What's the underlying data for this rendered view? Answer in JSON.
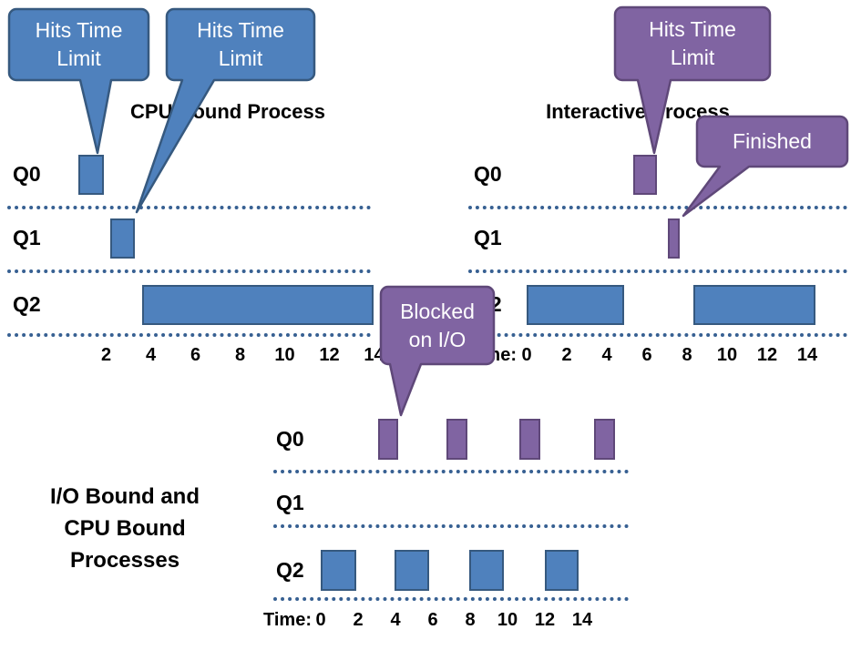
{
  "colors": {
    "blue_fill": "#4f81bd",
    "blue_border": "#36597f",
    "purple_fill": "#8064a2",
    "purple_border": "#5f4879",
    "dotted_line": "#376092",
    "text": "#000000",
    "callout_text": "#ffffff"
  },
  "charts": [
    {
      "id": "cpu_bound",
      "title": "CPU Bound Process",
      "queues": [
        "Q0",
        "Q1",
        "Q2"
      ],
      "axis": {
        "prefix": "",
        "ticks": [
          2,
          4,
          6,
          8,
          10,
          12,
          14
        ]
      },
      "bars": [
        {
          "queue": 0,
          "start": 0.75,
          "end": 1.9,
          "color": "blue"
        },
        {
          "queue": 1,
          "start": 2.2,
          "end": 3.3,
          "color": "blue"
        },
        {
          "queue": 2,
          "start": 3.6,
          "end": 14.0,
          "color": "blue"
        }
      ]
    },
    {
      "id": "interactive",
      "title": "Interactive Process",
      "queues": [
        "Q0",
        "Q1",
        "Q2"
      ],
      "axis": {
        "prefix": "Time:",
        "ticks": [
          0,
          2,
          4,
          6,
          8,
          10,
          12,
          14
        ]
      },
      "bars": [
        {
          "queue": 2,
          "start": 0,
          "end": 4.85,
          "color": "blue"
        },
        {
          "queue": 0,
          "start": 5.3,
          "end": 6.5,
          "color": "purple"
        },
        {
          "queue": 1,
          "start": 7.05,
          "end": 7.62,
          "color": "purple"
        },
        {
          "queue": 2,
          "start": 8.3,
          "end": 14.4,
          "color": "blue"
        }
      ]
    },
    {
      "id": "io_bound",
      "title": "",
      "queues": [
        "Q0",
        "Q1",
        "Q2"
      ],
      "axis": {
        "prefix": "Time:",
        "ticks": [
          0,
          2,
          4,
          6,
          8,
          10,
          12,
          14
        ]
      },
      "bars": [
        {
          "queue": 0,
          "start": 3.05,
          "end": 4.15,
          "color": "purple"
        },
        {
          "queue": 0,
          "start": 6.75,
          "end": 7.85,
          "color": "purple"
        },
        {
          "queue": 0,
          "start": 10.65,
          "end": 11.75,
          "color": "purple"
        },
        {
          "queue": 0,
          "start": 14.65,
          "end": 15.75,
          "color": "purple"
        },
        {
          "queue": 2,
          "start": 0,
          "end": 1.9,
          "color": "blue"
        },
        {
          "queue": 2,
          "start": 3.95,
          "end": 5.8,
          "color": "blue"
        },
        {
          "queue": 2,
          "start": 7.95,
          "end": 9.8,
          "color": "blue"
        },
        {
          "queue": 2,
          "start": 12.0,
          "end": 13.8,
          "color": "blue"
        }
      ]
    }
  ],
  "side_label": {
    "lines": [
      "I/O Bound and",
      "CPU Bound",
      "Processes"
    ]
  },
  "callouts": [
    {
      "id": "hits-time-limit-cpu-q0",
      "lines": [
        "Hits Time",
        "Limit"
      ],
      "color": "blue"
    },
    {
      "id": "hits-time-limit-cpu-q1",
      "lines": [
        "Hits Time",
        "Limit"
      ],
      "color": "blue"
    },
    {
      "id": "hits-time-limit-interactive",
      "lines": [
        "Hits Time",
        "Limit"
      ],
      "color": "purple"
    },
    {
      "id": "finished",
      "lines": [
        "Finished"
      ],
      "color": "purple"
    },
    {
      "id": "blocked-on-io",
      "lines": [
        "Blocked",
        "on I/O"
      ],
      "color": "purple"
    }
  ]
}
